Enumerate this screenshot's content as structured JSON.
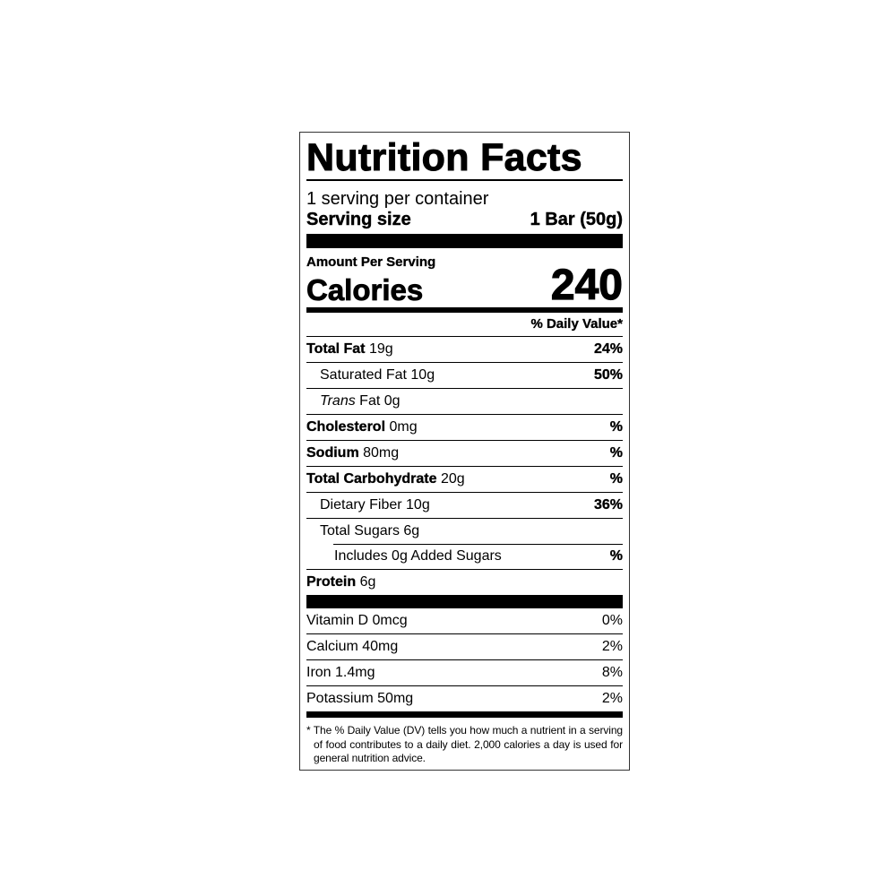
{
  "title": "Nutrition Facts",
  "servings_per_container": "1 serving per container",
  "serving_size_label": "Serving size",
  "serving_size_value": "1 Bar (50g)",
  "amount_per_serving": "Amount Per Serving",
  "calories_label": "Calories",
  "calories_value": "240",
  "daily_value_header": "% Daily Value*",
  "nutrients": [
    {
      "name": "Total Fat",
      "amount": "19g",
      "dv": "24%"
    },
    {
      "name": "Saturated Fat",
      "amount": "10g",
      "dv": "50%"
    },
    {
      "name": "Trans",
      "name_suffix": "Fat",
      "amount": "0g",
      "dv": ""
    },
    {
      "name": "Cholesterol",
      "amount": "0mg",
      "dv": "%"
    },
    {
      "name": "Sodium",
      "amount": "80mg",
      "dv": "%"
    },
    {
      "name": "Total Carbohydrate",
      "amount": "20g",
      "dv": "%"
    },
    {
      "name": "Dietary Fiber",
      "amount": "10g",
      "dv": "36%"
    },
    {
      "name": "Total Sugars",
      "amount": "6g",
      "dv": ""
    },
    {
      "name": "Includes 0g Added Sugars",
      "amount": "",
      "dv": "%"
    },
    {
      "name": "Protein",
      "amount": "6g",
      "dv": ""
    }
  ],
  "vitamins": [
    {
      "name": "Vitamin D",
      "amount": "0mcg",
      "dv": "0%"
    },
    {
      "name": "Calcium",
      "amount": "40mg",
      "dv": "2%"
    },
    {
      "name": "Iron",
      "amount": "1.4mg",
      "dv": "8%"
    },
    {
      "name": "Potassium",
      "amount": "50mg",
      "dv": "2%"
    }
  ],
  "footnote": "* The % Daily Value (DV) tells you how much a nutrient in a serving of food contributes to a daily diet. 2,000 calories a day is used for general nutrition advice."
}
